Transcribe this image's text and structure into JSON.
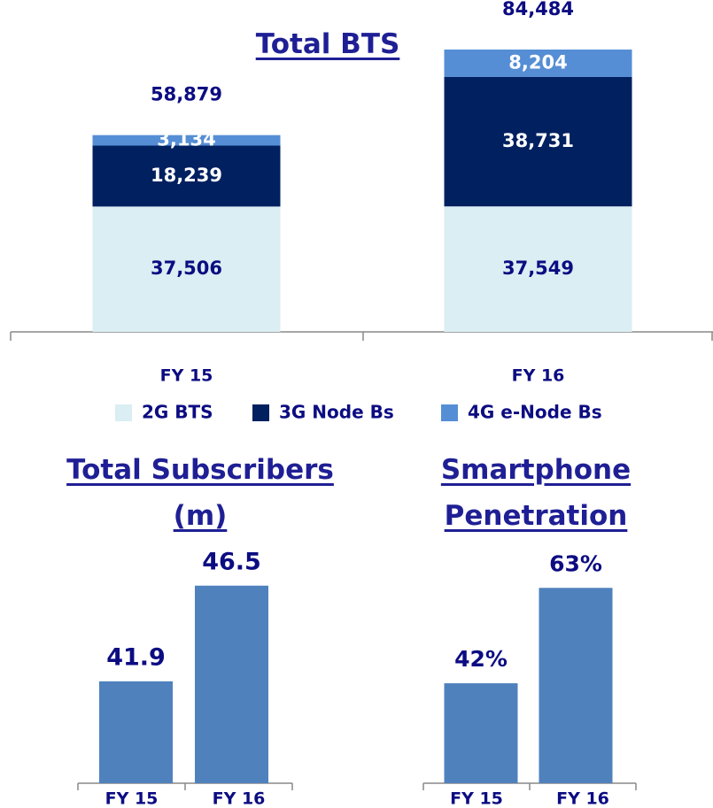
{
  "chart_data": [
    {
      "type": "bar",
      "stacked": true,
      "title": "Total BTS",
      "categories": [
        "FY 15",
        "FY 16"
      ],
      "series": [
        {
          "name": "2G BTS",
          "color": "#daeef3",
          "values": [
            37506,
            37549
          ],
          "value_labels": [
            "37,506",
            "37,549"
          ]
        },
        {
          "name": "3G Node Bs",
          "color": "#002060",
          "values": [
            18239,
            38731
          ],
          "value_labels": [
            "18,239",
            "38,731"
          ]
        },
        {
          "name": "4G e-Node Bs",
          "color": "#558ed5",
          "values": [
            3134,
            8204
          ],
          "value_labels": [
            "3,134",
            "8,204"
          ]
        }
      ],
      "totals": [
        58879,
        84484
      ],
      "total_labels": [
        "58,879",
        "84,484"
      ],
      "legend": "bottom"
    },
    {
      "type": "bar",
      "title": "Total Subscribers (m)",
      "categories": [
        "FY 15",
        "FY 16"
      ],
      "values": [
        41.9,
        46.5
      ],
      "color": "#4f81bd",
      "ylim": [
        37,
        47
      ]
    },
    {
      "type": "bar",
      "title": "Smartphone Penetration",
      "categories": [
        "FY 15",
        "FY 16"
      ],
      "values": [
        42,
        63
      ],
      "value_labels": [
        "42%",
        "63%"
      ],
      "color": "#4f81bd",
      "ylim": [
        20,
        65
      ]
    }
  ]
}
